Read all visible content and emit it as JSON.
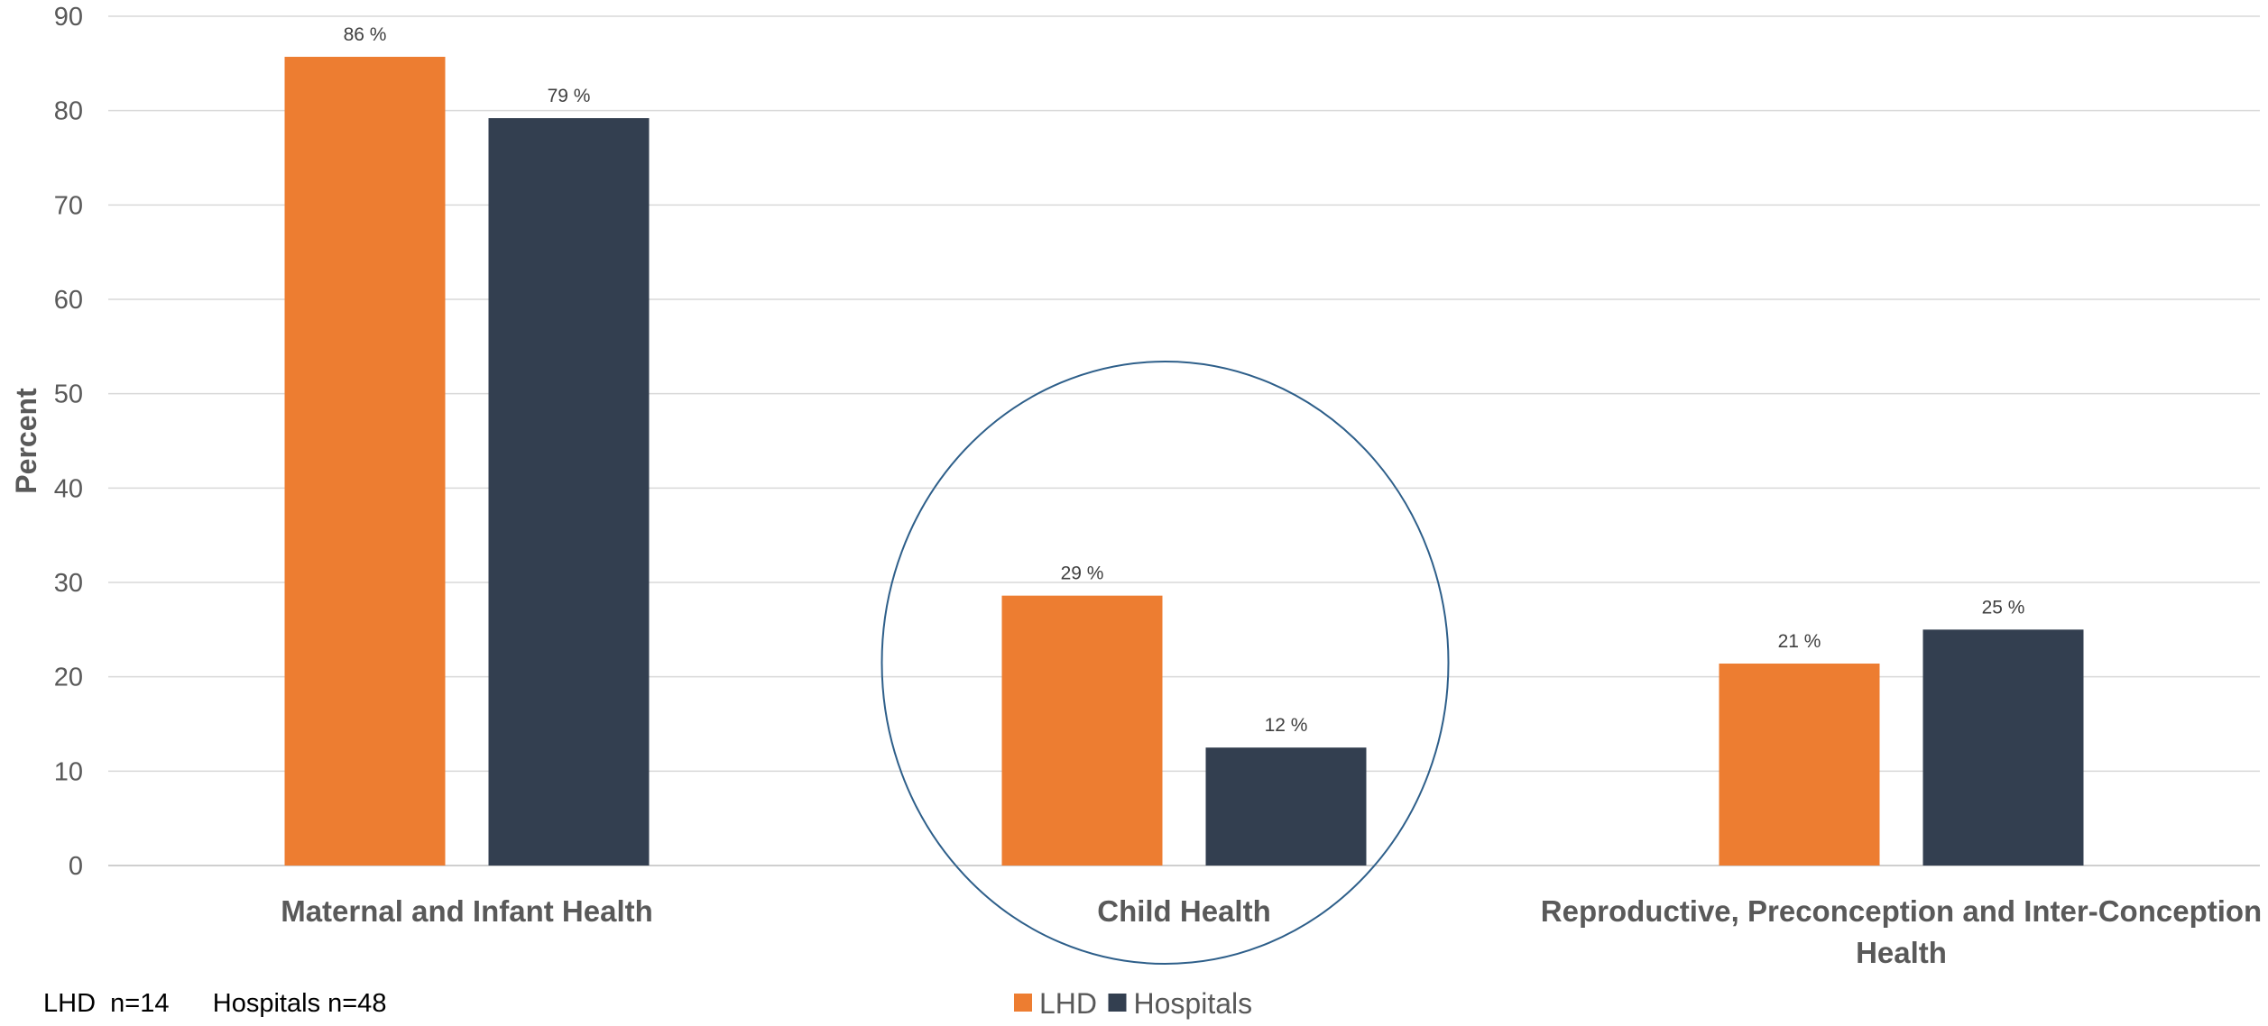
{
  "chart_data": {
    "type": "bar",
    "categories": [
      [
        "Maternal and Infant Health"
      ],
      [
        "Child Health"
      ],
      [
        "Reproductive, Preconception and Inter-Conception",
        "Health"
      ]
    ],
    "series": [
      {
        "name": "LHD",
        "color": "#ED7D31",
        "values": [
          85.7,
          28.6,
          21.4
        ],
        "labels": [
          "86 %",
          "29 %",
          "21 %"
        ]
      },
      {
        "name": "Hospitals",
        "color": "#333F50",
        "values": [
          79.2,
          12.5,
          25.0
        ],
        "labels": [
          "79 %",
          "12 %",
          "25 %"
        ]
      }
    ],
    "ylabel": "Percent",
    "ylim": [
      0,
      90
    ],
    "yticks": [
      0,
      10,
      20,
      30,
      40,
      50,
      60,
      70,
      80,
      90
    ],
    "grid": true,
    "legend_position": "bottom",
    "highlight": {
      "shape": "ellipse",
      "category": "Child Health",
      "color": "#2E5F8A"
    }
  },
  "footnote": "LHD  n=14      Hospitals n=48"
}
